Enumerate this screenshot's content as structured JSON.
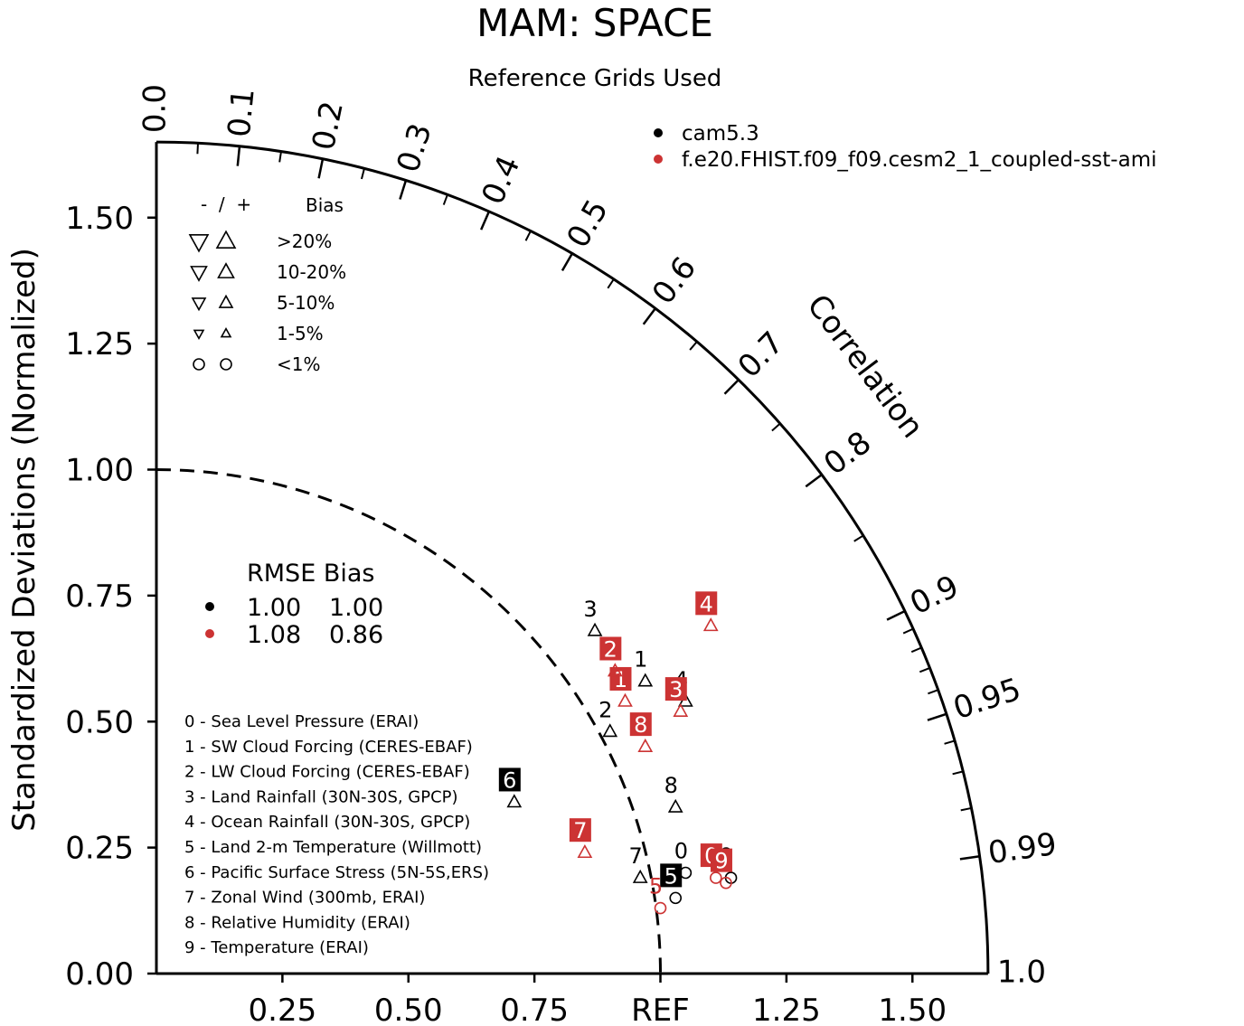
{
  "chart_data": {
    "type": "scatter",
    "subtype": "taylor-diagram",
    "title": "MAM: SPACE",
    "subtitle": "Reference Grids Used",
    "ylabel": "Standardized Deviations (Normalized)",
    "arc_label": "Correlation",
    "x_tick_labels": [
      "0.25",
      "0.50",
      "0.75",
      "REF",
      "1.25",
      "1.50"
    ],
    "y_tick_labels": [
      "0.00",
      "0.25",
      "0.50",
      "0.75",
      "1.00",
      "1.25",
      "1.50"
    ],
    "correlation_ticks": [
      {
        "value": 0.0,
        "label": "0.0"
      },
      {
        "value": 0.1,
        "label": "0.1"
      },
      {
        "value": 0.2,
        "label": "0.2"
      },
      {
        "value": 0.3,
        "label": "0.3"
      },
      {
        "value": 0.4,
        "label": "0.4"
      },
      {
        "value": 0.5,
        "label": "0.5"
      },
      {
        "value": 0.6,
        "label": "0.6"
      },
      {
        "value": 0.7,
        "label": "0.7"
      },
      {
        "value": 0.8,
        "label": "0.8"
      },
      {
        "value": 0.9,
        "label": "0.9"
      },
      {
        "value": 0.95,
        "label": "0.95"
      },
      {
        "value": 0.99,
        "label": "0.99"
      },
      {
        "value": 1.0,
        "label": "1.0"
      }
    ],
    "sd_max": 1.65,
    "ref_sd": 1.0,
    "legend_models": [
      {
        "name": "cam5.3",
        "color": "#000000"
      },
      {
        "name": "f.e20.FHIST.f09_f09.cesm2_1_coupled-sst-ami",
        "color": "#cc3333"
      }
    ],
    "bias_legend": {
      "header_sign": "-  /  +",
      "header_bias": "Bias",
      "rows": [
        "&gt;20%",
        "10-20%",
        "5-10%",
        "1-5%",
        "&lt;1%"
      ]
    },
    "rmse_legend": {
      "header": "RMSE Bias",
      "rows": [
        {
          "rmse": "1.00",
          "bias": "1.00",
          "color": "#000000"
        },
        {
          "rmse": "1.08",
          "bias": "0.86",
          "color": "#cc3333"
        }
      ]
    },
    "variables": [
      "0 - Sea Level Pressure (ERAI)",
      "1 - SW Cloud Forcing (CERES-EBAF)",
      "2 - LW Cloud Forcing (CERES-EBAF)",
      "3 - Land Rainfall (30N-30S, GPCP)",
      "4 - Ocean Rainfall (30N-30S, GPCP)",
      "5 - Land 2-m Temperature (Willmott)",
      "6 - Pacific Surface Stress (5N-5S,ERS)",
      "7 - Zonal Wind (300mb, ERAI)",
      "8 - Relative Humidity (ERAI)",
      "9 - Temperature (ERAI)"
    ],
    "points": [
      {
        "model": 0,
        "label": "0",
        "x": 1.05,
        "y": 0.2,
        "marker": "circle",
        "boxed": false
      },
      {
        "model": 0,
        "label": "1",
        "x": 0.97,
        "y": 0.58,
        "marker": "triangle-up",
        "boxed": false
      },
      {
        "model": 0,
        "label": "2",
        "x": 0.9,
        "y": 0.48,
        "marker": "triangle-up",
        "boxed": false
      },
      {
        "model": 0,
        "label": "3",
        "x": 0.87,
        "y": 0.68,
        "marker": "triangle-up",
        "boxed": false
      },
      {
        "model": 0,
        "label": "4",
        "x": 1.05,
        "y": 0.54,
        "marker": "triangle-up",
        "boxed": false
      },
      {
        "model": 0,
        "label": "5",
        "x": 1.03,
        "y": 0.15,
        "marker": "circle",
        "boxed": true
      },
      {
        "model": 0,
        "label": "6",
        "x": 0.71,
        "y": 0.34,
        "marker": "triangle-up",
        "boxed": true
      },
      {
        "model": 0,
        "label": "7",
        "x": 0.96,
        "y": 0.19,
        "marker": "triangle-up",
        "boxed": false
      },
      {
        "model": 0,
        "label": "8",
        "x": 1.03,
        "y": 0.33,
        "marker": "triangle-up",
        "boxed": false
      },
      {
        "model": 0,
        "label": "9",
        "x": 1.14,
        "y": 0.19,
        "marker": "circle",
        "boxed": false
      },
      {
        "model": 1,
        "label": "0",
        "x": 1.11,
        "y": 0.19,
        "marker": "circle",
        "boxed": true
      },
      {
        "model": 1,
        "label": "1",
        "x": 0.93,
        "y": 0.54,
        "marker": "triangle-up",
        "boxed": true
      },
      {
        "model": 1,
        "label": "2",
        "x": 0.91,
        "y": 0.6,
        "marker": "triangle-up",
        "boxed": true
      },
      {
        "model": 1,
        "label": "3",
        "x": 1.04,
        "y": 0.52,
        "marker": "triangle-up",
        "boxed": true
      },
      {
        "model": 1,
        "label": "4",
        "x": 1.1,
        "y": 0.69,
        "marker": "triangle-up",
        "boxed": true
      },
      {
        "model": 1,
        "label": "5",
        "x": 1.0,
        "y": 0.13,
        "marker": "circle",
        "boxed": false
      },
      {
        "model": 1,
        "label": "7",
        "x": 0.85,
        "y": 0.24,
        "marker": "triangle-up",
        "boxed": true
      },
      {
        "model": 1,
        "label": "8",
        "x": 0.97,
        "y": 0.45,
        "marker": "triangle-up",
        "boxed": true
      },
      {
        "model": 1,
        "label": "9",
        "x": 1.13,
        "y": 0.18,
        "marker": "circle",
        "boxed": true
      }
    ]
  }
}
